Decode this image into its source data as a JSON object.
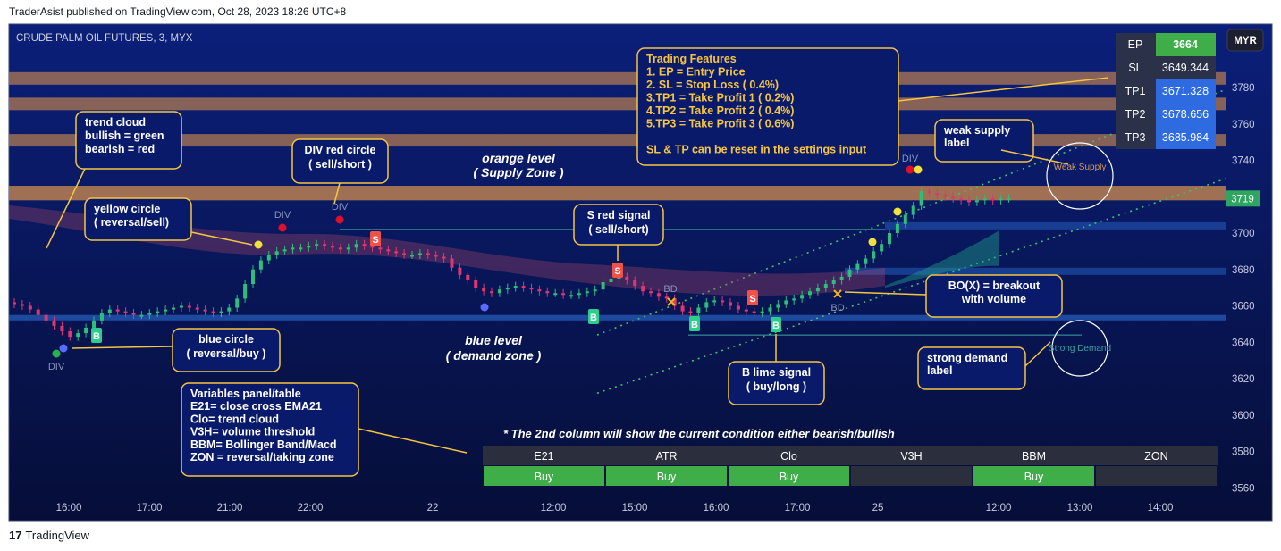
{
  "publisher_line": "TraderAsist published on TradingView.com, Oct 28, 2023 18:26 UTC+8",
  "footer": {
    "logo": "17",
    "brand": "TradingView"
  },
  "symbol_title": "CRUDE PALM OIL FUTURES, 3, MYX",
  "currency_badge": "MYR",
  "last_price_label": "3719",
  "colors": {
    "bg_top": "#0a1a6b",
    "bg_bottom": "#07103d",
    "up_candle": "#2bbf7a",
    "down_candle": "#e0366f",
    "supply_band": "#b07a52",
    "demand_line": "#2b6cd1",
    "annotation_border": "#f5c542",
    "annotation_bg": "#0a1a6b",
    "buy_green": "#3fae49",
    "signal_red": "#f0524a",
    "signal_green": "#2bcf8a"
  },
  "chart_data": {
    "type": "candlestick",
    "title": "CRUDE PALM OIL FUTURES, 3, MYX",
    "y_axis": {
      "ticks": [
        3780,
        3760,
        3740,
        3720,
        3700,
        3680,
        3660,
        3640,
        3620,
        3600,
        3580,
        3560
      ],
      "range": [
        3552,
        3800
      ]
    },
    "x_axis": {
      "ticks": [
        "16:00",
        "17:00",
        "21:00",
        "22:00",
        "22",
        "12:00",
        "15:00",
        "16:00",
        "17:00",
        "25",
        "12:00",
        "13:00",
        "14:00"
      ]
    },
    "close_series": [
      3661,
      3660,
      3658,
      3655,
      3652,
      3649,
      3646,
      3643,
      3645,
      3648,
      3652,
      3656,
      3658,
      3657,
      3656,
      3655,
      3655,
      3656,
      3657,
      3658,
      3659,
      3660,
      3659,
      3658,
      3657,
      3656,
      3657,
      3659,
      3664,
      3672,
      3680,
      3685,
      3688,
      3690,
      3691,
      3692,
      3692,
      3693,
      3694,
      3693,
      3692,
      3691,
      3692,
      3694,
      3693,
      3692,
      3691,
      3690,
      3689,
      3688,
      3688,
      3689,
      3688,
      3687,
      3686,
      3681,
      3677,
      3674,
      3670,
      3668,
      3667,
      3669,
      3670,
      3671,
      3670,
      3669,
      3668,
      3667,
      3667,
      3666,
      3666,
      3667,
      3668,
      3669,
      3673,
      3675,
      3676,
      3674,
      3671,
      3668,
      3667,
      3665,
      3664,
      3660,
      3657,
      3656,
      3659,
      3662,
      3663,
      3662,
      3660,
      3658,
      3657,
      3656,
      3657,
      3659,
      3661,
      3663,
      3664,
      3666,
      3668,
      3670,
      3672,
      3674,
      3676,
      3680,
      3683,
      3686,
      3690,
      3694,
      3700,
      3705,
      3710,
      3715,
      3723,
      3722,
      3721,
      3720,
      3719,
      3718,
      3717,
      3718,
      3719,
      3718,
      3719,
      3719
    ],
    "levels": {
      "supply_zone": [
        3718,
        3726
      ],
      "tp_bands": [
        3785,
        3771,
        3751
      ],
      "demand_zone": [
        3652,
        3655
      ],
      "blue_lines": [
        3704,
        3679
      ]
    },
    "trade_table": [
      {
        "label": "EP",
        "value": "3664"
      },
      {
        "label": "SL",
        "value": "3649.344"
      },
      {
        "label": "TP1",
        "value": "3671.328"
      },
      {
        "label": "TP2",
        "value": "3678.656"
      },
      {
        "label": "TP3",
        "value": "3685.984"
      }
    ],
    "variables_table": {
      "headers": [
        "E21",
        "ATR",
        "Clo",
        "V3H",
        "BBM",
        "ZON"
      ],
      "values": [
        "Buy",
        "Buy",
        "Buy",
        "",
        "Buy",
        ""
      ]
    },
    "chart_labels": {
      "div": "DIV",
      "bd": "BD",
      "buy_signal": "B",
      "sell_signal": "S",
      "weak_supply": "Weak Supply",
      "strong_demand": "Strong Demand"
    },
    "annotations": {
      "trend_cloud": [
        "trend cloud",
        "bullish = green",
        "bearish = red"
      ],
      "yellow_circle": [
        "yellow circle",
        "( reversal/sell)"
      ],
      "div_red": [
        "DIV red circle",
        "( sell/short )"
      ],
      "orange_level": [
        "orange level",
        "( Supply Zone )"
      ],
      "s_red": [
        "S red signal",
        "( sell/short)"
      ],
      "features": [
        "Trading Features",
        "1. EP  = Entry Price",
        "2. SL  = Stop Loss ( 0.4%)",
        "3.TP1 = Take Profit 1 ( 0.2%)",
        "4.TP2 = Take Profit 2 ( 0.4%)",
        "5.TP3 = Take Profit 3 ( 0.6%)",
        "",
        "SL & TP can be reset in the settings input"
      ],
      "weak_supply": [
        "weak supply",
        "label"
      ],
      "blue_circle": [
        "blue circle",
        "( reversal/buy )"
      ],
      "blue_level": [
        "blue level",
        "( demand zone )"
      ],
      "bo": [
        "BO(X) = breakout",
        "with volume"
      ],
      "b_lime": [
        "B lime signal",
        "( buy/long )"
      ],
      "strong_demand": [
        "strong demand",
        "label"
      ],
      "variables": [
        "Variables panel/table",
        "E21= close cross EMA21",
        "Clo= trend cloud",
        "V3H= volume threshold",
        "BBM= Bollinger Band/Macd",
        "ZON = reversal/taking zone"
      ],
      "second_column": "* The 2nd column will show the current condition either bearish/bullish"
    }
  }
}
